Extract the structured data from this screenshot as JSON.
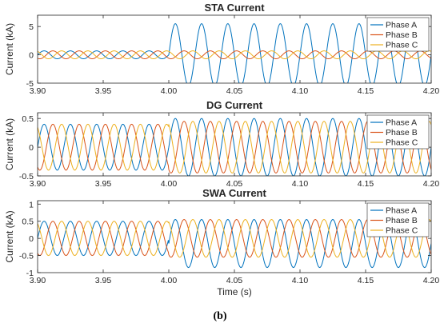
{
  "figure": {
    "caption": "(b)",
    "colors": {
      "phase_a": "#0072BD",
      "phase_b": "#D95319",
      "phase_c": "#EDB120"
    }
  },
  "chart_data": [
    {
      "type": "line",
      "title": "STA Current",
      "xlabel": "",
      "ylabel": "Current (kA)",
      "xlim": [
        3.9,
        4.2
      ],
      "ylim": [
        -5,
        7
      ],
      "xticks": [
        "3.90",
        "3.95",
        "4.00",
        "4.05",
        "4.10",
        "4.15",
        "4.20"
      ],
      "yticks": [
        "5",
        "0",
        "-5"
      ],
      "ytick_values": [
        5,
        0,
        -5
      ],
      "frequency_hz": 50,
      "event_time": 4.0,
      "legend_position": "top-right",
      "series": [
        {
          "name": "Phase A",
          "color": "#0072BD",
          "before": {
            "amplitude": 0.7,
            "offset": 0,
            "phase_deg": 0
          },
          "after": {
            "amplitude": 5.5,
            "offset": 0,
            "phase_deg": 0
          }
        },
        {
          "name": "Phase B",
          "color": "#D95319",
          "before": {
            "amplitude": 0.7,
            "offset": 0,
            "phase_deg": -120
          },
          "after": {
            "amplitude": 0.7,
            "offset": 0,
            "phase_deg": -120
          }
        },
        {
          "name": "Phase C",
          "color": "#EDB120",
          "before": {
            "amplitude": 0.7,
            "offset": 0,
            "phase_deg": 120
          },
          "after": {
            "amplitude": 0.7,
            "offset": 0,
            "phase_deg": 120
          }
        }
      ]
    },
    {
      "type": "line",
      "title": "DG Current",
      "xlabel": "",
      "ylabel": "Current (kA)",
      "xlim": [
        3.9,
        4.2
      ],
      "ylim": [
        -0.5,
        0.6
      ],
      "xticks": [
        "3.90",
        "3.95",
        "4.00",
        "4.05",
        "4.10",
        "4.15",
        "4.20"
      ],
      "yticks": [
        "0.5",
        "0",
        "-0.5"
      ],
      "ytick_values": [
        0.5,
        0,
        -0.5
      ],
      "frequency_hz": 50,
      "event_time": 4.0,
      "legend_position": "top-right",
      "series": [
        {
          "name": "Phase A",
          "color": "#0072BD",
          "before": {
            "amplitude": 0.4,
            "offset": 0,
            "phase_deg": 0
          },
          "after": {
            "amplitude": 0.5,
            "offset": 0,
            "phase_deg": 0
          }
        },
        {
          "name": "Phase B",
          "color": "#D95319",
          "before": {
            "amplitude": 0.4,
            "offset": 0,
            "phase_deg": -120
          },
          "after": {
            "amplitude": 0.45,
            "offset": 0,
            "phase_deg": -120
          }
        },
        {
          "name": "Phase C",
          "color": "#EDB120",
          "before": {
            "amplitude": 0.4,
            "offset": 0,
            "phase_deg": 120
          },
          "after": {
            "amplitude": 0.45,
            "offset": 0,
            "phase_deg": 120
          }
        }
      ]
    },
    {
      "type": "line",
      "title": "SWA Current",
      "xlabel": "Time (s)",
      "ylabel": "Current (kA)",
      "xlim": [
        3.9,
        4.2
      ],
      "ylim": [
        -1,
        1.1
      ],
      "xticks": [
        "3.90",
        "3.95",
        "4.00",
        "4.05",
        "4.10",
        "4.15",
        "4.20"
      ],
      "yticks": [
        "1",
        "0.5",
        "0",
        "-0.5",
        "-1"
      ],
      "ytick_values": [
        1,
        0.5,
        0,
        -0.5,
        -1
      ],
      "frequency_hz": 50,
      "event_time": 4.0,
      "legend_position": "top-right",
      "series": [
        {
          "name": "Phase A",
          "color": "#0072BD",
          "before": {
            "amplitude": 0.5,
            "offset": 0,
            "phase_deg": 0
          },
          "after": {
            "amplitude": 0.7,
            "offset": -0.15,
            "phase_deg": 0
          }
        },
        {
          "name": "Phase B",
          "color": "#D95319",
          "before": {
            "amplitude": 0.5,
            "offset": 0,
            "phase_deg": -120
          },
          "after": {
            "amplitude": 0.55,
            "offset": 0,
            "phase_deg": -120
          }
        },
        {
          "name": "Phase C",
          "color": "#EDB120",
          "before": {
            "amplitude": 0.5,
            "offset": 0,
            "phase_deg": 120
          },
          "after": {
            "amplitude": 0.55,
            "offset": 0,
            "phase_deg": 120
          }
        }
      ]
    }
  ]
}
